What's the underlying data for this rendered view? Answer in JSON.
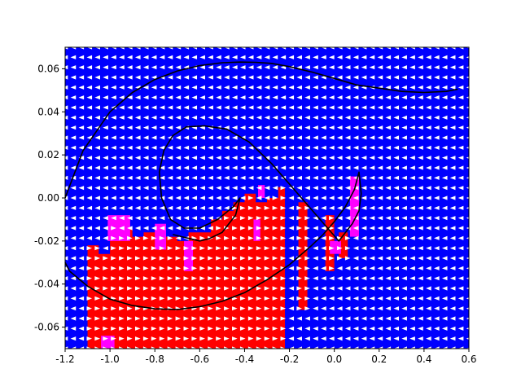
{
  "chart_data": {
    "type": "heatmap",
    "title": "",
    "xlabel": "",
    "ylabel": "",
    "xlim": [
      -1.2,
      0.6
    ],
    "ylim": [
      -0.07,
      0.07
    ],
    "x_ticks": [
      "-1.2",
      "-1.0",
      "-0.8",
      "-0.6",
      "-0.4",
      "-0.2",
      "0.0",
      "0.2",
      "0.4",
      "0.6"
    ],
    "y_ticks": [
      "-0.06",
      "-0.04",
      "-0.02",
      "0.00",
      "0.02",
      "0.04",
      "0.06"
    ],
    "grid": false,
    "legend": "none",
    "grid_size": {
      "nx": 51,
      "ny": 31
    },
    "colors": {
      "left_action": "#0000ff",
      "right_action": "#ff0000",
      "mixed_action": "#ff00ff",
      "arrow": "#ffffff",
      "trajectory": "#000000"
    },
    "red_region": {
      "x_edges": [
        -1.1,
        -1.05,
        -1.0,
        -0.95,
        -0.9,
        -0.85,
        -0.8,
        -0.75,
        -0.7,
        -0.65,
        -0.6,
        -0.55,
        -0.5,
        -0.45,
        -0.4,
        -0.35,
        -0.3,
        -0.25,
        -0.22
      ],
      "y_tops": [
        -0.022,
        -0.026,
        -0.01,
        -0.014,
        -0.018,
        -0.016,
        -0.014,
        -0.018,
        -0.02,
        -0.016,
        -0.016,
        -0.01,
        -0.006,
        -0.002,
        0.002,
        -0.002,
        0.0,
        0.005,
        0.004
      ]
    },
    "red_strips": [
      {
        "x": [
          -0.16,
          -0.12
        ],
        "y": [
          -0.052,
          -0.002
        ]
      },
      {
        "x": [
          -0.04,
          0.0
        ],
        "y": [
          -0.034,
          -0.008
        ]
      },
      {
        "x": [
          0.02,
          0.06
        ],
        "y": [
          -0.028,
          -0.016
        ]
      }
    ],
    "magenta_patches": [
      {
        "x": [
          -1.01,
          -0.91
        ],
        "y": [
          -0.02,
          -0.008
        ]
      },
      {
        "x": [
          -0.8,
          -0.75
        ],
        "y": [
          -0.024,
          -0.012
        ]
      },
      {
        "x": [
          -0.67,
          -0.63
        ],
        "y": [
          -0.034,
          -0.02
        ]
      },
      {
        "x": [
          -0.36,
          -0.33
        ],
        "y": [
          -0.02,
          -0.01
        ]
      },
      {
        "x": [
          -0.34,
          -0.31
        ],
        "y": [
          0.0,
          0.006
        ]
      },
      {
        "x": [
          -1.04,
          -0.98
        ],
        "y": [
          -0.07,
          -0.064
        ]
      },
      {
        "x": [
          -0.02,
          0.03
        ],
        "y": [
          -0.026,
          -0.02
        ]
      },
      {
        "x": [
          0.07,
          0.11
        ],
        "y": [
          -0.018,
          0.01
        ]
      }
    ],
    "trajectories": [
      {
        "x": [
          -1.2,
          -1.12,
          -1.0,
          -0.9,
          -0.8,
          -0.7,
          -0.6,
          -0.5,
          -0.42,
          -0.35,
          -0.28,
          -0.2,
          -0.1,
          0.0,
          0.1,
          0.2,
          0.3,
          0.4,
          0.5,
          0.55
        ],
        "y": [
          0.0,
          0.022,
          0.04,
          0.049,
          0.055,
          0.059,
          0.0615,
          0.0628,
          0.0631,
          0.063,
          0.0625,
          0.061,
          0.0585,
          0.0555,
          0.0525,
          0.051,
          0.0495,
          0.049,
          0.0495,
          0.0505
        ]
      },
      {
        "x": [
          -1.2,
          -1.18,
          -1.1,
          -1.0,
          -0.9,
          -0.8,
          -0.7,
          -0.6,
          -0.5,
          -0.4,
          -0.3,
          -0.2,
          -0.1,
          -0.05,
          0.0,
          0.05,
          0.09,
          0.11,
          0.12,
          0.11,
          0.08,
          0.02,
          -0.08,
          -0.18,
          -0.28,
          -0.38,
          -0.48,
          -0.58,
          -0.66,
          -0.72,
          -0.76,
          -0.78,
          -0.77,
          -0.73,
          -0.67,
          -0.6,
          -0.52,
          -0.45,
          -0.42,
          -0.44,
          -0.5,
          -0.56,
          -0.6,
          -0.64,
          -0.68,
          -0.72
        ],
        "y": [
          -0.03,
          -0.034,
          -0.041,
          -0.047,
          -0.05,
          -0.0515,
          -0.0518,
          -0.0505,
          -0.048,
          -0.044,
          -0.038,
          -0.031,
          -0.022,
          -0.017,
          -0.011,
          -0.004,
          0.004,
          0.012,
          0.002,
          -0.006,
          -0.012,
          -0.02,
          -0.008,
          0.004,
          0.016,
          0.026,
          0.032,
          0.0335,
          0.033,
          0.029,
          0.022,
          0.012,
          0.0,
          -0.01,
          -0.014,
          -0.014,
          -0.01,
          -0.004,
          0.0,
          -0.008,
          -0.016,
          -0.019,
          -0.02,
          -0.019,
          -0.018,
          -0.017
        ]
      }
    ]
  }
}
